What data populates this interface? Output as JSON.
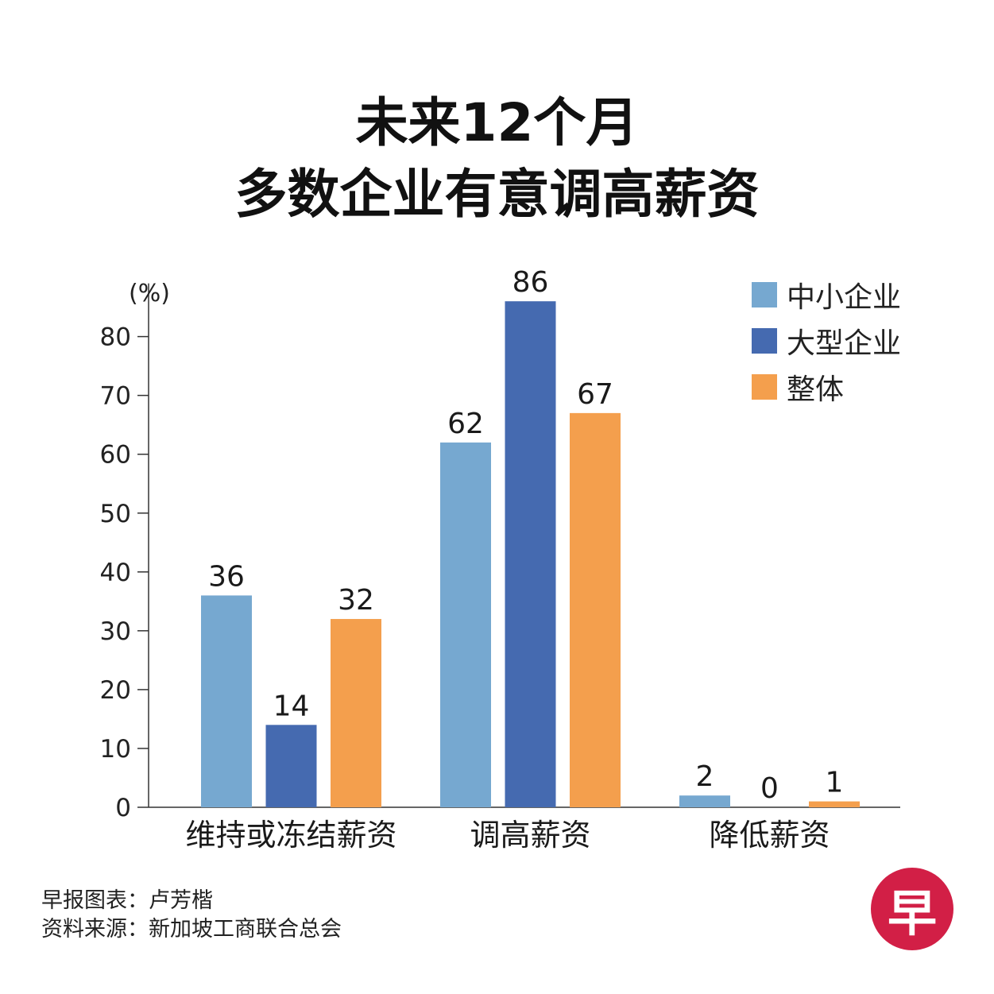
{
  "title": {
    "line1": "未来12个月",
    "line2": "多数企业有意调高薪资"
  },
  "credits": {
    "chart_by": "早报图表：卢芳楷",
    "source": "资料来源：新加坡工商联合总会"
  },
  "logo": {
    "text": "早",
    "color": "#d21f46"
  },
  "colors": {
    "sme": "#76a8d0",
    "large": "#456ab0",
    "overall": "#f49f4d",
    "axis": "#333333"
  },
  "chart_data": {
    "type": "bar",
    "unit_label": "(%)",
    "categories": [
      "维持或冻结薪资",
      "调高薪资",
      "降低薪资"
    ],
    "series": [
      {
        "name": "中小企业",
        "values": [
          36,
          62,
          2
        ],
        "color": "#76a8d0"
      },
      {
        "name": "大型企业",
        "values": [
          14,
          86,
          0
        ],
        "color": "#456ab0"
      },
      {
        "name": "整体",
        "values": [
          32,
          67,
          1
        ],
        "color": "#f49f4d"
      }
    ],
    "yticks": [
      0,
      10,
      20,
      30,
      40,
      50,
      60,
      70,
      80
    ],
    "ylim": [
      0,
      85
    ],
    "legend_position": "top-right",
    "grid": false
  }
}
